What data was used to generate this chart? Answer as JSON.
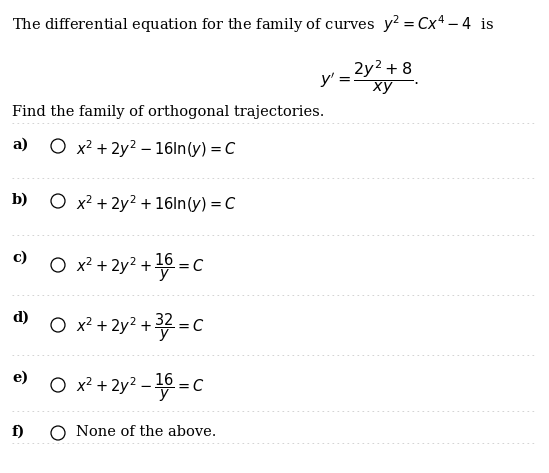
{
  "bg_color": "#ffffff",
  "title_text": "The differential equation for the family of curves  $y^2 = Cx^4 - 4$  is",
  "equation": "$y' = \\dfrac{2y^2 + 8}{xy}.$",
  "subtitle": "Find the family of orthogonal trajectories.",
  "options": [
    {
      "label": "a)",
      "expr": "$x^2 + 2y^2 - 16\\ln(y) = C$"
    },
    {
      "label": "b)",
      "expr": "$x^2 + 2y^2 + 16\\ln(y) = C$"
    },
    {
      "label": "c)",
      "expr": "$x^2 + 2y^2 + \\dfrac{16}{y} = C$"
    },
    {
      "label": "d)",
      "expr": "$x^2 + 2y^2 + \\dfrac{32}{y} = C$"
    },
    {
      "label": "e)",
      "expr": "$x^2 + 2y^2 - \\dfrac{16}{y} = C$"
    },
    {
      "label": "f)",
      "expr": "None of the above."
    }
  ],
  "title_fontsize": 10.5,
  "option_label_fontsize": 10.5,
  "option_expr_fontsize": 10.5,
  "subtitle_fontsize": 10.5,
  "equation_fontsize": 11.5,
  "separator_color": "#cccccc",
  "text_color": "#000000"
}
